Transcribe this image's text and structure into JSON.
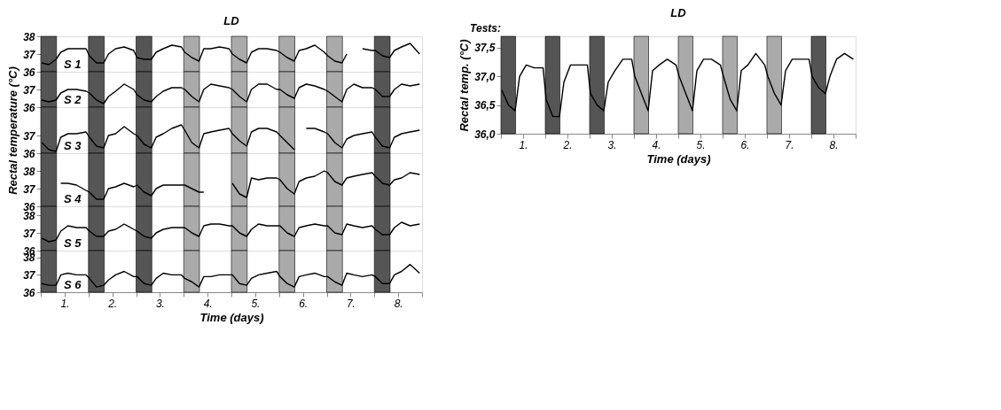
{
  "chart_data": [
    {
      "type": "line",
      "annotations": [
        "LD"
      ],
      "xlim": [
        0,
        8
      ],
      "ylim": [
        36,
        38
      ],
      "yticks": [
        36,
        37,
        38
      ],
      "tick_labels": "y",
      "grid": false,
      "x": [
        0.02,
        0.17,
        0.32,
        0.42,
        0.57,
        0.75,
        0.95,
        1.02,
        1.17,
        1.32,
        1.42,
        1.57,
        1.75,
        1.95,
        2.02,
        2.17,
        2.32,
        2.42,
        2.57,
        2.75,
        2.95,
        3.02,
        3.17,
        3.32,
        3.42,
        3.57,
        3.75,
        3.95,
        4.02,
        4.17,
        4.32,
        4.42,
        4.57,
        4.75,
        4.95,
        5.02,
        5.17,
        5.32,
        5.42,
        5.57,
        5.75,
        5.95,
        6.02,
        6.17,
        6.32,
        6.42,
        6.57,
        6.75,
        6.95,
        7.02,
        7.17,
        7.32,
        7.42,
        7.57,
        7.75,
        7.95
      ],
      "bands": [
        {
          "axis": "x",
          "from": 0,
          "to": 0.33,
          "color": "#555555"
        },
        {
          "axis": "x",
          "from": 1,
          "to": 1.33,
          "color": "#555555"
        },
        {
          "axis": "x",
          "from": 2,
          "to": 2.33,
          "color": "#555555"
        },
        {
          "axis": "x",
          "from": 3,
          "to": 3.33,
          "color": "#aaaaaa"
        },
        {
          "axis": "x",
          "from": 4,
          "to": 4.33,
          "color": "#aaaaaa"
        },
        {
          "axis": "x",
          "from": 5,
          "to": 5.33,
          "color": "#aaaaaa"
        },
        {
          "axis": "x",
          "from": 6,
          "to": 6.33,
          "color": "#aaaaaa"
        },
        {
          "axis": "x",
          "from": 7,
          "to": 7.33,
          "color": "#555555"
        }
      ],
      "series": [
        {
          "name": "S 1",
          "color": "#000000",
          "values": [
            36.5,
            36.4,
            36.7,
            37.1,
            37.3,
            37.3,
            37.3,
            36.9,
            36.5,
            36.5,
            37.0,
            37.3,
            37.4,
            37.2,
            36.8,
            36.7,
            36.7,
            37.1,
            37.3,
            37.5,
            37.4,
            37.1,
            36.8,
            36.6,
            37.3,
            37.3,
            37.4,
            37.3,
            37.0,
            36.7,
            36.5,
            37.1,
            37.3,
            37.3,
            37.2,
            37.1,
            36.8,
            36.6,
            37.2,
            37.3,
            37.5,
            37.1,
            36.9,
            36.6,
            36.5,
            37.0,
            null,
            37.3,
            37.2,
            37.2,
            36.9,
            36.8,
            37.2,
            37.4,
            37.6,
            37.0
          ]
        }
      ]
    },
    {
      "type": "line",
      "xlim": [
        0,
        8
      ],
      "ylim": [
        36,
        38
      ],
      "yticks": [
        36,
        37
      ],
      "tick_labels": "y",
      "grid": false,
      "x": [
        0.02,
        0.17,
        0.32,
        0.42,
        0.57,
        0.75,
        0.95,
        1.02,
        1.17,
        1.32,
        1.42,
        1.57,
        1.75,
        1.95,
        2.02,
        2.17,
        2.32,
        2.42,
        2.57,
        2.75,
        2.95,
        3.02,
        3.17,
        3.32,
        3.42,
        3.57,
        3.75,
        3.95,
        4.02,
        4.17,
        4.32,
        4.42,
        4.57,
        4.75,
        4.95,
        5.02,
        5.17,
        5.32,
        5.42,
        5.57,
        5.75,
        5.95,
        6.02,
        6.17,
        6.32,
        6.42,
        6.57,
        6.75,
        6.95,
        7.02,
        7.17,
        7.32,
        7.42,
        7.57,
        7.75,
        7.95
      ],
      "bands": [
        {
          "axis": "x",
          "from": 0,
          "to": 0.33,
          "color": "#555555"
        },
        {
          "axis": "x",
          "from": 1,
          "to": 1.33,
          "color": "#555555"
        },
        {
          "axis": "x",
          "from": 2,
          "to": 2.33,
          "color": "#555555"
        },
        {
          "axis": "x",
          "from": 3,
          "to": 3.33,
          "color": "#aaaaaa"
        },
        {
          "axis": "x",
          "from": 4,
          "to": 4.33,
          "color": "#aaaaaa"
        },
        {
          "axis": "x",
          "from": 5,
          "to": 5.33,
          "color": "#aaaaaa"
        },
        {
          "axis": "x",
          "from": 6,
          "to": 6.33,
          "color": "#aaaaaa"
        },
        {
          "axis": "x",
          "from": 7,
          "to": 7.33,
          "color": "#555555"
        }
      ],
      "series": [
        {
          "name": "S 2",
          "color": "#000000",
          "values": [
            36.4,
            36.3,
            36.4,
            36.8,
            37.0,
            37.0,
            36.9,
            36.8,
            36.4,
            36.2,
            36.6,
            36.9,
            37.3,
            37.0,
            36.7,
            36.4,
            36.3,
            36.6,
            36.9,
            37.1,
            37.1,
            37.0,
            36.6,
            36.3,
            37.0,
            37.3,
            37.2,
            37.1,
            37.0,
            36.6,
            36.3,
            37.0,
            37.3,
            37.3,
            37.0,
            37.0,
            36.7,
            36.5,
            37.1,
            37.3,
            37.2,
            37.0,
            36.9,
            36.6,
            36.3,
            37.0,
            37.3,
            37.1,
            37.1,
            37.0,
            36.6,
            36.6,
            37.0,
            37.3,
            37.2,
            37.3
          ]
        }
      ]
    },
    {
      "type": "line",
      "ylabel": "Rectal temperature (°C)",
      "xlim": [
        0,
        8
      ],
      "ylim": [
        36,
        38.6
      ],
      "yticks": [
        36,
        37
      ],
      "tick_labels": "y",
      "grid": false,
      "x": [
        0.02,
        0.17,
        0.32,
        0.42,
        0.57,
        0.75,
        0.95,
        1.02,
        1.17,
        1.32,
        1.42,
        1.57,
        1.75,
        1.95,
        2.02,
        2.17,
        2.32,
        2.42,
        2.57,
        2.75,
        2.95,
        3.02,
        3.17,
        3.32,
        3.42,
        3.57,
        3.75,
        3.95,
        4.02,
        4.17,
        4.32,
        4.42,
        4.57,
        4.75,
        4.95,
        5.02,
        5.17,
        5.32,
        5.42,
        5.57,
        5.75,
        5.95,
        6.02,
        6.17,
        6.32,
        6.42,
        6.57,
        6.75,
        6.95,
        7.02,
        7.17,
        7.32,
        7.42,
        7.57,
        7.75,
        7.95
      ],
      "bands": [
        {
          "axis": "x",
          "from": 0,
          "to": 0.33,
          "color": "#555555"
        },
        {
          "axis": "x",
          "from": 1,
          "to": 1.33,
          "color": "#555555"
        },
        {
          "axis": "x",
          "from": 2,
          "to": 2.33,
          "color": "#555555"
        },
        {
          "axis": "x",
          "from": 3,
          "to": 3.33,
          "color": "#aaaaaa"
        },
        {
          "axis": "x",
          "from": 4,
          "to": 4.33,
          "color": "#aaaaaa"
        },
        {
          "axis": "x",
          "from": 5,
          "to": 5.33,
          "color": "#aaaaaa"
        },
        {
          "axis": "x",
          "from": 6,
          "to": 6.33,
          "color": "#aaaaaa"
        },
        {
          "axis": "x",
          "from": 7,
          "to": 7.33,
          "color": "#555555"
        }
      ],
      "series": [
        {
          "name": "S 3",
          "color": "#000000",
          "values": [
            36.6,
            36.2,
            36.1,
            36.9,
            37.1,
            37.1,
            37.2,
            36.9,
            36.4,
            36.3,
            37.0,
            37.1,
            37.5,
            37.1,
            37.0,
            36.5,
            36.3,
            36.9,
            37.1,
            37.4,
            37.6,
            37.3,
            36.6,
            36.3,
            37.1,
            37.2,
            37.3,
            37.4,
            37.1,
            36.7,
            36.4,
            37.2,
            37.4,
            37.4,
            37.2,
            37.0,
            36.6,
            36.2,
            null,
            37.4,
            37.4,
            37.2,
            37.1,
            36.6,
            36.3,
            36.8,
            37.0,
            37.1,
            37.2,
            36.9,
            36.4,
            36.3,
            36.9,
            37.1,
            37.2,
            37.3
          ]
        }
      ]
    },
    {
      "type": "line",
      "xlim": [
        0,
        8
      ],
      "ylim": [
        36,
        39
      ],
      "yticks": [
        36,
        37,
        38
      ],
      "tick_labels": "y",
      "grid": false,
      "bands": [
        {
          "axis": "x",
          "from": 0,
          "to": 0.33,
          "color": "#555555"
        },
        {
          "axis": "x",
          "from": 1,
          "to": 1.33,
          "color": "#555555"
        },
        {
          "axis": "x",
          "from": 2,
          "to": 2.33,
          "color": "#555555"
        },
        {
          "axis": "x",
          "from": 3,
          "to": 3.33,
          "color": "#aaaaaa"
        },
        {
          "axis": "x",
          "from": 4,
          "to": 4.33,
          "color": "#aaaaaa"
        },
        {
          "axis": "x",
          "from": 5,
          "to": 5.33,
          "color": "#aaaaaa"
        },
        {
          "axis": "x",
          "from": 6,
          "to": 6.33,
          "color": "#aaaaaa"
        },
        {
          "axis": "x",
          "from": 7,
          "to": 7.33,
          "color": "#555555"
        }
      ],
      "series": [
        {
          "name": "S 4",
          "color": "#000000",
          "x": [
            0.42,
            0.57,
            0.75,
            0.95,
            1.02,
            1.17,
            1.32,
            1.42,
            1.57,
            1.75,
            1.95,
            2.02,
            2.17,
            2.32,
            2.42,
            2.57,
            2.75,
            2.95,
            3.02,
            3.17,
            3.32,
            3.42,
            3.57,
            3.75,
            3.95,
            4.02,
            4.17,
            4.32,
            4.42,
            4.57,
            4.75,
            4.95,
            5.02,
            5.17,
            5.32,
            5.42,
            5.57,
            5.75,
            5.95,
            6.02,
            6.17,
            6.32,
            6.42,
            6.57,
            6.75,
            6.95,
            7.02,
            7.17,
            7.32,
            7.42,
            7.57,
            7.75,
            7.95
          ],
          "values": [
            37.3,
            37.3,
            37.2,
            36.9,
            36.8,
            36.4,
            36.4,
            37.0,
            37.1,
            37.3,
            37.1,
            37.2,
            36.8,
            36.6,
            37.0,
            37.2,
            37.2,
            37.2,
            37.2,
            37.0,
            36.8,
            36.8,
            null,
            null,
            null,
            37.3,
            36.7,
            36.5,
            37.6,
            37.5,
            37.6,
            37.6,
            37.5,
            37.0,
            36.7,
            37.4,
            37.6,
            37.7,
            38.0,
            37.9,
            37.4,
            37.2,
            37.6,
            37.7,
            37.8,
            37.9,
            37.7,
            37.3,
            37.2,
            37.5,
            37.6,
            37.9,
            37.8
          ]
        }
      ]
    },
    {
      "type": "line",
      "xlim": [
        0,
        8
      ],
      "ylim": [
        36,
        38.5
      ],
      "yticks": [
        36,
        37,
        38
      ],
      "tick_labels": "y",
      "grid": false,
      "x": [
        0.02,
        0.17,
        0.32,
        0.42,
        0.57,
        0.75,
        0.95,
        1.02,
        1.17,
        1.32,
        1.42,
        1.57,
        1.75,
        1.95,
        2.02,
        2.17,
        2.32,
        2.42,
        2.57,
        2.75,
        2.95,
        3.02,
        3.17,
        3.32,
        3.42,
        3.57,
        3.75,
        3.95,
        4.02,
        4.17,
        4.32,
        4.42,
        4.57,
        4.75,
        4.95,
        5.02,
        5.17,
        5.32,
        5.42,
        5.57,
        5.75,
        5.95,
        6.02,
        6.17,
        6.32,
        6.42,
        6.57,
        6.75,
        6.95,
        7.02,
        7.17,
        7.32,
        7.42,
        7.57,
        7.75,
        7.95
      ],
      "bands": [
        {
          "axis": "x",
          "from": 0,
          "to": 0.33,
          "color": "#555555"
        },
        {
          "axis": "x",
          "from": 1,
          "to": 1.33,
          "color": "#555555"
        },
        {
          "axis": "x",
          "from": 2,
          "to": 2.33,
          "color": "#555555"
        },
        {
          "axis": "x",
          "from": 3,
          "to": 3.33,
          "color": "#aaaaaa"
        },
        {
          "axis": "x",
          "from": 4,
          "to": 4.33,
          "color": "#aaaaaa"
        },
        {
          "axis": "x",
          "from": 5,
          "to": 5.33,
          "color": "#aaaaaa"
        },
        {
          "axis": "x",
          "from": 6,
          "to": 6.33,
          "color": "#aaaaaa"
        },
        {
          "axis": "x",
          "from": 7,
          "to": 7.33,
          "color": "#555555"
        }
      ],
      "series": [
        {
          "name": "S 5",
          "color": "#000000",
          "values": [
            36.7,
            36.5,
            36.6,
            37.1,
            37.4,
            37.3,
            37.3,
            37.1,
            36.8,
            36.8,
            37.1,
            37.2,
            37.5,
            37.2,
            37.1,
            36.8,
            36.7,
            37.0,
            37.2,
            37.3,
            37.3,
            37.3,
            37.0,
            36.8,
            37.4,
            37.5,
            37.5,
            37.4,
            37.4,
            37.0,
            36.8,
            37.2,
            37.5,
            37.4,
            37.4,
            37.4,
            37.0,
            36.8,
            37.3,
            37.4,
            37.5,
            37.4,
            37.4,
            37.0,
            36.9,
            37.5,
            37.4,
            37.3,
            37.4,
            37.2,
            36.9,
            36.9,
            37.3,
            37.6,
            37.4,
            37.5
          ]
        }
      ]
    },
    {
      "type": "line",
      "xlabel": "Time (days)",
      "xlim": [
        0,
        8
      ],
      "ylim": [
        36,
        38.4
      ],
      "yticks": [
        36,
        37,
        38
      ],
      "grid": false,
      "xticks": [
        {
          "value": 0,
          "label": null
        },
        {
          "value": 0.5,
          "label": "1."
        },
        {
          "value": 1,
          "label": null
        },
        {
          "value": 1.5,
          "label": "2."
        },
        {
          "value": 2,
          "label": null
        },
        {
          "value": 2.5,
          "label": "3."
        },
        {
          "value": 3,
          "label": null
        },
        {
          "value": 3.5,
          "label": "4."
        },
        {
          "value": 4,
          "label": null
        },
        {
          "value": 4.5,
          "label": "5."
        },
        {
          "value": 5,
          "label": null
        },
        {
          "value": 5.5,
          "label": "6."
        },
        {
          "value": 6,
          "label": null
        },
        {
          "value": 6.5,
          "label": "7."
        },
        {
          "value": 7,
          "label": null
        },
        {
          "value": 7.5,
          "label": "8."
        },
        {
          "value": 8,
          "label": null
        }
      ],
      "x": [
        0.02,
        0.17,
        0.32,
        0.42,
        0.57,
        0.75,
        0.95,
        1.02,
        1.17,
        1.32,
        1.42,
        1.57,
        1.75,
        1.95,
        2.02,
        2.17,
        2.32,
        2.42,
        2.57,
        2.75,
        2.95,
        3.02,
        3.17,
        3.32,
        3.42,
        3.57,
        3.75,
        3.95,
        4.02,
        4.17,
        4.32,
        4.42,
        4.57,
        4.75,
        4.95,
        5.02,
        5.17,
        5.32,
        5.42,
        5.57,
        5.75,
        5.95,
        6.02,
        6.17,
        6.32,
        6.42,
        6.57,
        6.75,
        6.95,
        7.02,
        7.17,
        7.32,
        7.42,
        7.57,
        7.75,
        7.95
      ],
      "bands": [
        {
          "axis": "x",
          "from": 0,
          "to": 0.33,
          "color": "#555555"
        },
        {
          "axis": "x",
          "from": 1,
          "to": 1.33,
          "color": "#555555"
        },
        {
          "axis": "x",
          "from": 2,
          "to": 2.33,
          "color": "#555555"
        },
        {
          "axis": "x",
          "from": 3,
          "to": 3.33,
          "color": "#aaaaaa"
        },
        {
          "axis": "x",
          "from": 4,
          "to": 4.33,
          "color": "#aaaaaa"
        },
        {
          "axis": "x",
          "from": 5,
          "to": 5.33,
          "color": "#aaaaaa"
        },
        {
          "axis": "x",
          "from": 6,
          "to": 6.33,
          "color": "#aaaaaa"
        },
        {
          "axis": "x",
          "from": 7,
          "to": 7.33,
          "color": "#555555"
        }
      ],
      "series": [
        {
          "name": "S 6",
          "color": "#000000",
          "values": [
            36.5,
            36.4,
            36.4,
            37.0,
            37.1,
            37.0,
            37.0,
            36.8,
            36.3,
            36.4,
            36.7,
            37.0,
            37.2,
            36.9,
            36.9,
            36.5,
            36.4,
            36.8,
            37.1,
            37.0,
            37.0,
            36.8,
            36.6,
            36.3,
            36.9,
            36.9,
            37.0,
            37.0,
            37.0,
            36.5,
            36.4,
            36.8,
            37.0,
            37.1,
            37.2,
            36.9,
            36.5,
            36.3,
            36.9,
            37.0,
            37.1,
            36.9,
            36.9,
            36.6,
            36.4,
            37.1,
            37.0,
            36.9,
            37.0,
            36.9,
            36.5,
            36.5,
            37.0,
            37.2,
            37.6,
            37.1
          ]
        }
      ]
    },
    {
      "type": "line",
      "annotations": [
        "LD",
        "Tests:"
      ],
      "xlabel": "Time (days)",
      "ylabel": "Rectal temp. (°C)",
      "xlim": [
        0,
        8
      ],
      "ylim": [
        36.0,
        37.7
      ],
      "grid": false,
      "yticks": [
        {
          "value": 36.0,
          "label": "36,0"
        },
        {
          "value": 36.5,
          "label": "36,5"
        },
        {
          "value": 37.0,
          "label": "37,0"
        },
        {
          "value": 37.5,
          "label": "37,5"
        }
      ],
      "xticks": [
        {
          "value": 0,
          "label": null
        },
        {
          "value": 0.5,
          "label": "1."
        },
        {
          "value": 1,
          "label": null
        },
        {
          "value": 1.5,
          "label": "2."
        },
        {
          "value": 2,
          "label": null
        },
        {
          "value": 2.5,
          "label": "3."
        },
        {
          "value": 3,
          "label": null
        },
        {
          "value": 3.5,
          "label": "4."
        },
        {
          "value": 4,
          "label": null
        },
        {
          "value": 4.5,
          "label": "5."
        },
        {
          "value": 5,
          "label": null
        },
        {
          "value": 5.5,
          "label": "6."
        },
        {
          "value": 6,
          "label": null
        },
        {
          "value": 6.5,
          "label": "7."
        },
        {
          "value": 7,
          "label": null
        },
        {
          "value": 7.5,
          "label": "8."
        },
        {
          "value": 8,
          "label": null
        }
      ],
      "x": [
        0.02,
        0.17,
        0.32,
        0.42,
        0.57,
        0.75,
        0.95,
        1.02,
        1.17,
        1.32,
        1.42,
        1.57,
        1.75,
        1.95,
        2.02,
        2.17,
        2.32,
        2.42,
        2.57,
        2.75,
        2.95,
        3.02,
        3.17,
        3.32,
        3.42,
        3.57,
        3.75,
        3.95,
        4.02,
        4.17,
        4.32,
        4.42,
        4.57,
        4.75,
        4.95,
        5.02,
        5.17,
        5.32,
        5.42,
        5.57,
        5.75,
        5.95,
        6.02,
        6.17,
        6.32,
        6.42,
        6.57,
        6.75,
        6.95,
        7.02,
        7.17,
        7.32,
        7.42,
        7.57,
        7.75,
        7.95
      ],
      "bands": [
        {
          "axis": "x",
          "from": 0,
          "to": 0.33,
          "color": "#555555"
        },
        {
          "axis": "x",
          "from": 1,
          "to": 1.33,
          "color": "#555555"
        },
        {
          "axis": "x",
          "from": 2,
          "to": 2.33,
          "color": "#555555"
        },
        {
          "axis": "x",
          "from": 3,
          "to": 3.33,
          "color": "#aaaaaa"
        },
        {
          "axis": "x",
          "from": 4,
          "to": 4.33,
          "color": "#aaaaaa"
        },
        {
          "axis": "x",
          "from": 5,
          "to": 5.33,
          "color": "#aaaaaa"
        },
        {
          "axis": "x",
          "from": 6,
          "to": 6.33,
          "color": "#aaaaaa"
        },
        {
          "axis": "x",
          "from": 7,
          "to": 7.33,
          "color": "#555555"
        }
      ],
      "series": [
        {
          "color": "#000000",
          "values": [
            36.76,
            36.5,
            36.4,
            37.0,
            37.2,
            37.15,
            37.15,
            36.6,
            36.3,
            36.3,
            36.9,
            37.2,
            37.2,
            37.2,
            36.7,
            36.5,
            36.4,
            36.9,
            37.1,
            37.3,
            37.3,
            37.0,
            36.7,
            36.4,
            37.1,
            37.2,
            37.3,
            37.2,
            37.0,
            36.7,
            36.4,
            37.1,
            37.3,
            37.3,
            37.2,
            37.0,
            36.6,
            36.4,
            37.1,
            37.2,
            37.4,
            37.2,
            37.0,
            36.7,
            36.5,
            37.1,
            37.3,
            37.3,
            37.3,
            37.0,
            36.8,
            36.7,
            37.0,
            37.3,
            37.4,
            37.3
          ]
        }
      ]
    }
  ]
}
